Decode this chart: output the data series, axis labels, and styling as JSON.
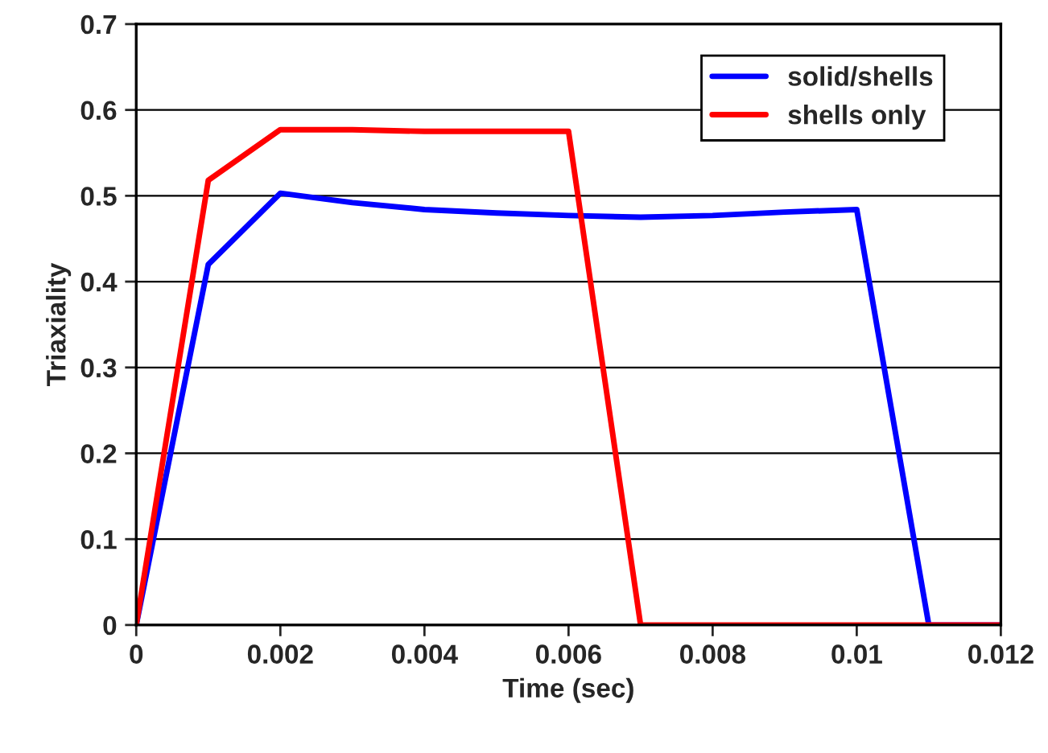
{
  "chart_data": {
    "type": "line",
    "xlabel": "Time (sec)",
    "ylabel": "Triaxiality",
    "x": [
      0,
      0.001,
      0.002,
      0.003,
      0.004,
      0.005,
      0.006,
      0.007,
      0.008,
      0.009,
      0.01,
      0.011,
      0.012
    ],
    "series": [
      {
        "name": "solid/shells",
        "color": "#0000ff",
        "values": [
          0,
          0.42,
          0.503,
          0.492,
          0.484,
          0.48,
          0.477,
          0.475,
          0.477,
          0.481,
          0.484,
          0,
          0
        ]
      },
      {
        "name": "shells only",
        "color": "#ff0000",
        "values": [
          0,
          0.518,
          0.577,
          0.577,
          0.575,
          0.575,
          0.575,
          0,
          0,
          0,
          0,
          0,
          0
        ]
      }
    ],
    "xlim": [
      0,
      0.012
    ],
    "xticks": [
      0,
      0.002,
      0.004,
      0.006,
      0.008,
      0.01,
      0.012
    ],
    "ylim": [
      0,
      0.7
    ],
    "yticks": [
      0,
      0.1,
      0.2,
      0.3,
      0.4,
      0.5,
      0.6,
      0.7
    ],
    "grid": "y",
    "legend": "top right",
    "marker": "none",
    "line_style": "solid"
  }
}
